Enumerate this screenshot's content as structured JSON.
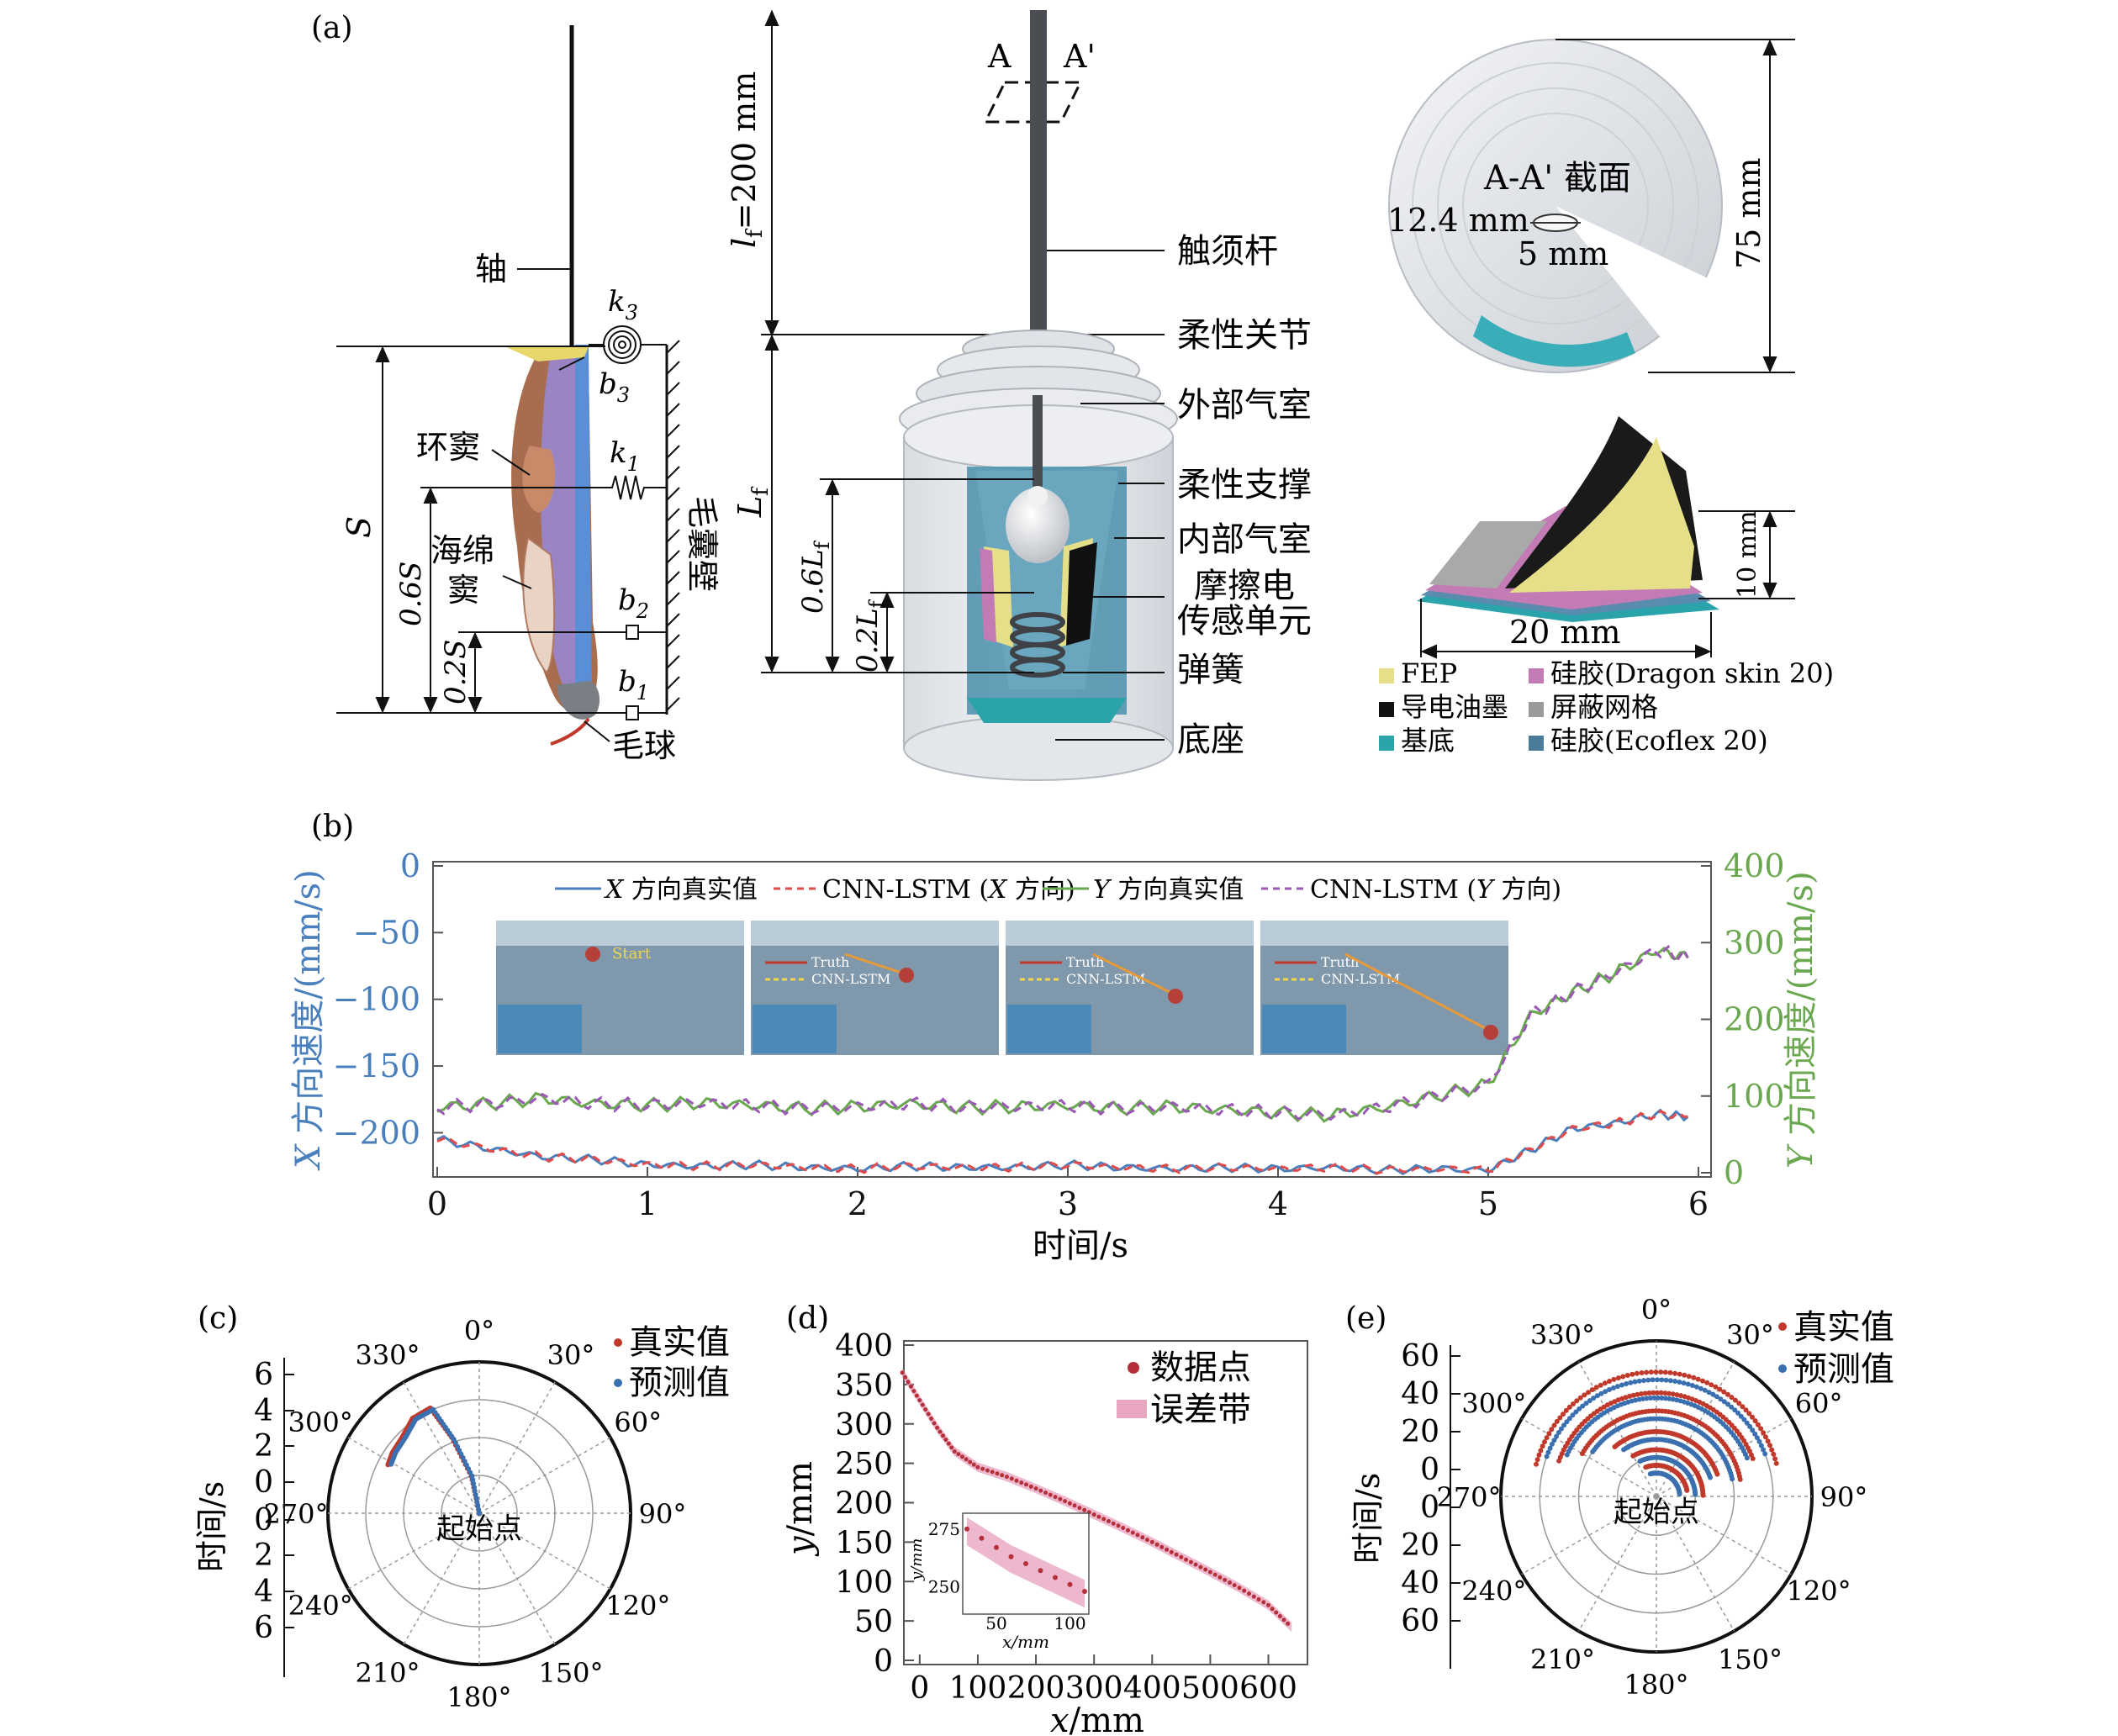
{
  "panel_labels": [
    "(a)",
    "(b)",
    "(c)",
    "(d)",
    "(e)"
  ],
  "panel_a": {
    "left": {
      "shaft": "轴",
      "ring_sinus": "环窦",
      "sponge_sinus_1": "海绵",
      "sponge_sinus_2": "窦",
      "follicle_wall": "毛囊壁",
      "hair_bulb": "毛球",
      "k3": "k",
      "k3_sub": "3",
      "k1": "k",
      "k1_sub": "1",
      "b3": "b",
      "b3_sub": "3",
      "b2": "b",
      "b2_sub": "2",
      "b1": "b",
      "b1_sub": "1",
      "S": "S",
      "dim_06S": "0.6S",
      "dim_02S": "0.2S"
    },
    "middle": {
      "A": "A",
      "A_prime": "A'",
      "lf_label": "l",
      "lf_sub": "f",
      "lf_value": "=200 mm",
      "Lf": "L",
      "Lf_sub": "f",
      "dim_06Lf": "0.6L",
      "dim_02Lf": "0.2L",
      "whisker_rod": "触须杆",
      "flex_joint": "柔性关节",
      "outer_chamber": "外部气室",
      "flex_support": "柔性支撑",
      "inner_chamber": "内部气室",
      "teng_1": "摩擦电",
      "teng_2": "传感单元",
      "spring": "弹簧",
      "base": "底座"
    },
    "right": {
      "section": "A-A' 截面",
      "dim_124": "12.4 mm",
      "dim_5": "5 mm",
      "dim_75": "75 mm",
      "dim_10": "10 mm",
      "dim_20": "20 mm",
      "legend": [
        {
          "label": "FEP",
          "color": "#e6df8a"
        },
        {
          "label": "硅胶(Dragon skin 20)",
          "color": "#c27bb4"
        },
        {
          "label": "导电油墨",
          "color": "#111111"
        },
        {
          "label": "屏蔽网格",
          "color": "#9a9a9a"
        },
        {
          "label": "基底",
          "color": "#2aa3ab"
        },
        {
          "label": "硅胶(Ecoflex 20)",
          "color": "#4b7b9a"
        }
      ]
    }
  },
  "panel_b": {
    "legend": [
      {
        "label_italic": "X",
        "label": " 方向真实值",
        "color": "#4a7fbd",
        "dash": false
      },
      {
        "label_pre": "CNN-LSTM (",
        "label_italic": "X",
        "label_post": " 方向)",
        "color": "#e04b4b",
        "dash": true
      },
      {
        "label_italic": "Y",
        "label": " 方向真实值",
        "color": "#6aa84f",
        "dash": false
      },
      {
        "label_pre": "CNN-LSTM (",
        "label_italic": "Y",
        "label_post": " 方向)",
        "color": "#9b59b6",
        "dash": true
      }
    ],
    "ylabel_left_italic": "X",
    "ylabel_left": " 方向速度/(mm/s)",
    "ylabel_right_italic": "Y",
    "ylabel_right": " 方向速度/(mm/s)",
    "xlabel": "时间/s",
    "inset_texts": [
      "Start",
      "Truth",
      "CNN-LSTM"
    ]
  },
  "panel_c": {
    "legend_true": "真实值",
    "legend_pred": "预测值",
    "ylabel": "时间/s",
    "center_label": "起始点"
  },
  "panel_d": {
    "legend_points": "数据点",
    "legend_band": "误差带",
    "ylabel_italic": "y",
    "ylabel": "/mm",
    "xlabel_italic": "x",
    "xlabel": "/mm"
  },
  "panel_e": {
    "legend_true": "真实值",
    "legend_pred": "预测值",
    "ylabel": "时间/s",
    "center_label": "起始点"
  },
  "chart_data": [
    {
      "panel": "b",
      "type": "line",
      "xlabel": "时间/s",
      "ylabel": "X 方向速度/(mm/s)",
      "y2label": "Y 方向速度/(mm/s)",
      "xlim": [
        0,
        6
      ],
      "ylim": [
        -230,
        0
      ],
      "y2lim": [
        0,
        400
      ],
      "xticks": [
        0,
        1,
        2,
        3,
        4,
        5,
        6
      ],
      "yticks": [
        0,
        -50,
        -100,
        -150,
        -200
      ],
      "y2ticks": [
        400,
        300,
        200,
        100,
        0
      ],
      "grid": false,
      "legend_position": "top",
      "x": [
        0,
        0.25,
        0.5,
        0.75,
        1.0,
        1.25,
        1.5,
        1.75,
        2.0,
        2.25,
        2.5,
        2.75,
        3.0,
        3.25,
        3.5,
        3.75,
        4.0,
        4.25,
        4.5,
        4.75,
        5.0,
        5.2,
        5.4,
        5.6,
        5.8,
        5.95
      ],
      "series": [
        {
          "name": "X 方向真实值",
          "axis": "left",
          "values": [
            -205,
            -212,
            -218,
            -220,
            -224,
            -225,
            -224,
            -226,
            -227,
            -225,
            -226,
            -226,
            -224,
            -226,
            -227,
            -226,
            -227,
            -226,
            -228,
            -227,
            -228,
            -213,
            -197,
            -193,
            -186,
            -188
          ]
        },
        {
          "name": "CNN-LSTM (X 方向)",
          "axis": "left",
          "values": [
            -205,
            -212,
            -218,
            -220,
            -224,
            -225,
            -224,
            -226,
            -227,
            -225,
            -226,
            -226,
            -224,
            -226,
            -227,
            -226,
            -227,
            -226,
            -228,
            -227,
            -228,
            -213,
            -197,
            -193,
            -186,
            -188
          ]
        },
        {
          "name": "Y 方向真实值",
          "axis": "right",
          "values": [
            85,
            90,
            97,
            90,
            88,
            91,
            88,
            84,
            86,
            90,
            85,
            86,
            88,
            84,
            86,
            82,
            78,
            75,
            85,
            100,
            115,
            205,
            235,
            260,
            290,
            280
          ]
        },
        {
          "name": "CNN-LSTM (Y 方向)",
          "axis": "right",
          "values": [
            85,
            90,
            97,
            90,
            88,
            91,
            88,
            84,
            86,
            90,
            85,
            86,
            88,
            84,
            86,
            82,
            78,
            75,
            85,
            100,
            115,
            205,
            235,
            260,
            290,
            280
          ]
        }
      ]
    },
    {
      "panel": "c",
      "type": "scatter",
      "subtype": "polar",
      "theta_ticks": [
        "0°",
        "30°",
        "60°",
        "90°",
        "120°",
        "150°",
        "180°",
        "210°",
        "240°",
        "270°",
        "300°",
        "330°"
      ],
      "r_ticks": [
        "6",
        "4",
        "2",
        "0",
        "0",
        "2",
        "4",
        "6"
      ],
      "rlim": [
        0,
        6
      ],
      "series": [
        {
          "name": "真实值",
          "color": "#c0392b",
          "points": [
            [
              0,
              0
            ],
            [
              348,
              1.5
            ],
            [
              340,
              3.2
            ],
            [
              335,
              4.6
            ],
            [
              325,
              4.6
            ],
            [
              315,
              4.3
            ],
            [
              305,
              4.2
            ],
            [
              298,
              4.1
            ]
          ]
        },
        {
          "name": "预测值",
          "color": "#3a6fb0",
          "points": [
            [
              0,
              0
            ],
            [
              349,
              1.5
            ],
            [
              341,
              3.1
            ],
            [
              336,
              4.5
            ],
            [
              326,
              4.5
            ],
            [
              316,
              4.2
            ],
            [
              306,
              4.1
            ],
            [
              299,
              4.0
            ]
          ]
        }
      ]
    },
    {
      "panel": "d",
      "type": "scatter",
      "xlabel": "x/mm",
      "ylabel": "y/mm",
      "xlim": [
        -20,
        660
      ],
      "ylim": [
        0,
        400
      ],
      "xticks": [
        0,
        100,
        200,
        300,
        400,
        500,
        600
      ],
      "yticks": [
        0,
        50,
        100,
        150,
        200,
        250,
        300,
        350,
        400
      ],
      "legend_position": "top-right",
      "series": [
        {
          "name": "数据点",
          "x": [
            -30,
            0,
            30,
            60,
            100,
            150,
            200,
            250,
            300,
            350,
            400,
            450,
            500,
            550,
            600,
            640
          ],
          "y": [
            365,
            330,
            295,
            265,
            245,
            233,
            218,
            202,
            185,
            168,
            150,
            131,
            112,
            92,
            70,
            42
          ]
        }
      ],
      "inset": {
        "xlabel": "x/mm",
        "ylabel": "y/mm",
        "xlim": [
          30,
          110
        ],
        "ylim": [
          240,
          280
        ],
        "xticks": [
          50,
          100
        ],
        "yticks": [
          250,
          275
        ],
        "x": [
          30,
          40,
          50,
          60,
          70,
          80,
          90,
          100,
          110
        ],
        "y": [
          275,
          271,
          267,
          263,
          260,
          257,
          254,
          251,
          248
        ]
      }
    },
    {
      "panel": "e",
      "type": "scatter",
      "subtype": "polar",
      "theta_ticks": [
        "0°",
        "30°",
        "60°",
        "90°",
        "120°",
        "150°",
        "180°",
        "210°",
        "240°",
        "270°",
        "300°",
        "330°"
      ],
      "r_ticks": [
        "60",
        "40",
        "20",
        "0",
        "0",
        "20",
        "40",
        "60"
      ],
      "rlim": [
        0,
        60
      ],
      "series": [
        {
          "name": "真实值",
          "color": "#c0392b",
          "arcs": [
            {
              "r": 48,
              "from": 285,
              "to": 75
            },
            {
              "r": 40,
              "from": 290,
              "to": 70
            },
            {
              "r": 33,
              "from": 300,
              "to": 80
            },
            {
              "r": 25,
              "from": 320,
              "to": 70
            },
            {
              "r": 18,
              "from": 330,
              "to": 90
            },
            {
              "r": 12,
              "from": 340,
              "to": 80
            }
          ]
        },
        {
          "name": "预测值",
          "color": "#3a6fb0",
          "arcs": [
            {
              "r": 45,
              "from": 290,
              "to": 70
            },
            {
              "r": 38,
              "from": 295,
              "to": 68
            },
            {
              "r": 30,
              "from": 305,
              "to": 78
            },
            {
              "r": 22,
              "from": 325,
              "to": 72
            },
            {
              "r": 15,
              "from": 335,
              "to": 88
            },
            {
              "r": 9,
              "from": 345,
              "to": 85
            }
          ]
        }
      ]
    }
  ]
}
